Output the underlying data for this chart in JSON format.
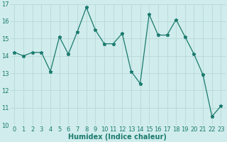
{
  "x": [
    0,
    1,
    2,
    3,
    4,
    5,
    6,
    7,
    8,
    9,
    10,
    11,
    12,
    13,
    14,
    15,
    16,
    17,
    18,
    19,
    20,
    21,
    22,
    23
  ],
  "y": [
    14.2,
    14.0,
    14.2,
    14.2,
    13.1,
    15.1,
    14.1,
    15.4,
    16.8,
    15.5,
    14.7,
    14.7,
    15.3,
    13.1,
    12.4,
    16.4,
    15.2,
    15.2,
    16.1,
    15.1,
    14.1,
    12.9,
    10.5,
    11.1
  ],
  "xlabel": "Humidex (Indice chaleur)",
  "ylim": [
    10,
    17
  ],
  "xlim_lo": -0.5,
  "xlim_hi": 23.5,
  "yticks": [
    10,
    11,
    12,
    13,
    14,
    15,
    16,
    17
  ],
  "xticks": [
    0,
    1,
    2,
    3,
    4,
    5,
    6,
    7,
    8,
    9,
    10,
    11,
    12,
    13,
    14,
    15,
    16,
    17,
    18,
    19,
    20,
    21,
    22,
    23
  ],
  "line_color": "#1a7a6e",
  "marker": "*",
  "bg_color": "#d0ecec",
  "grid_color": "#b8d8d8",
  "tick_color": "#1a7a6e",
  "label_fontsize": 6,
  "xlabel_fontsize": 7
}
